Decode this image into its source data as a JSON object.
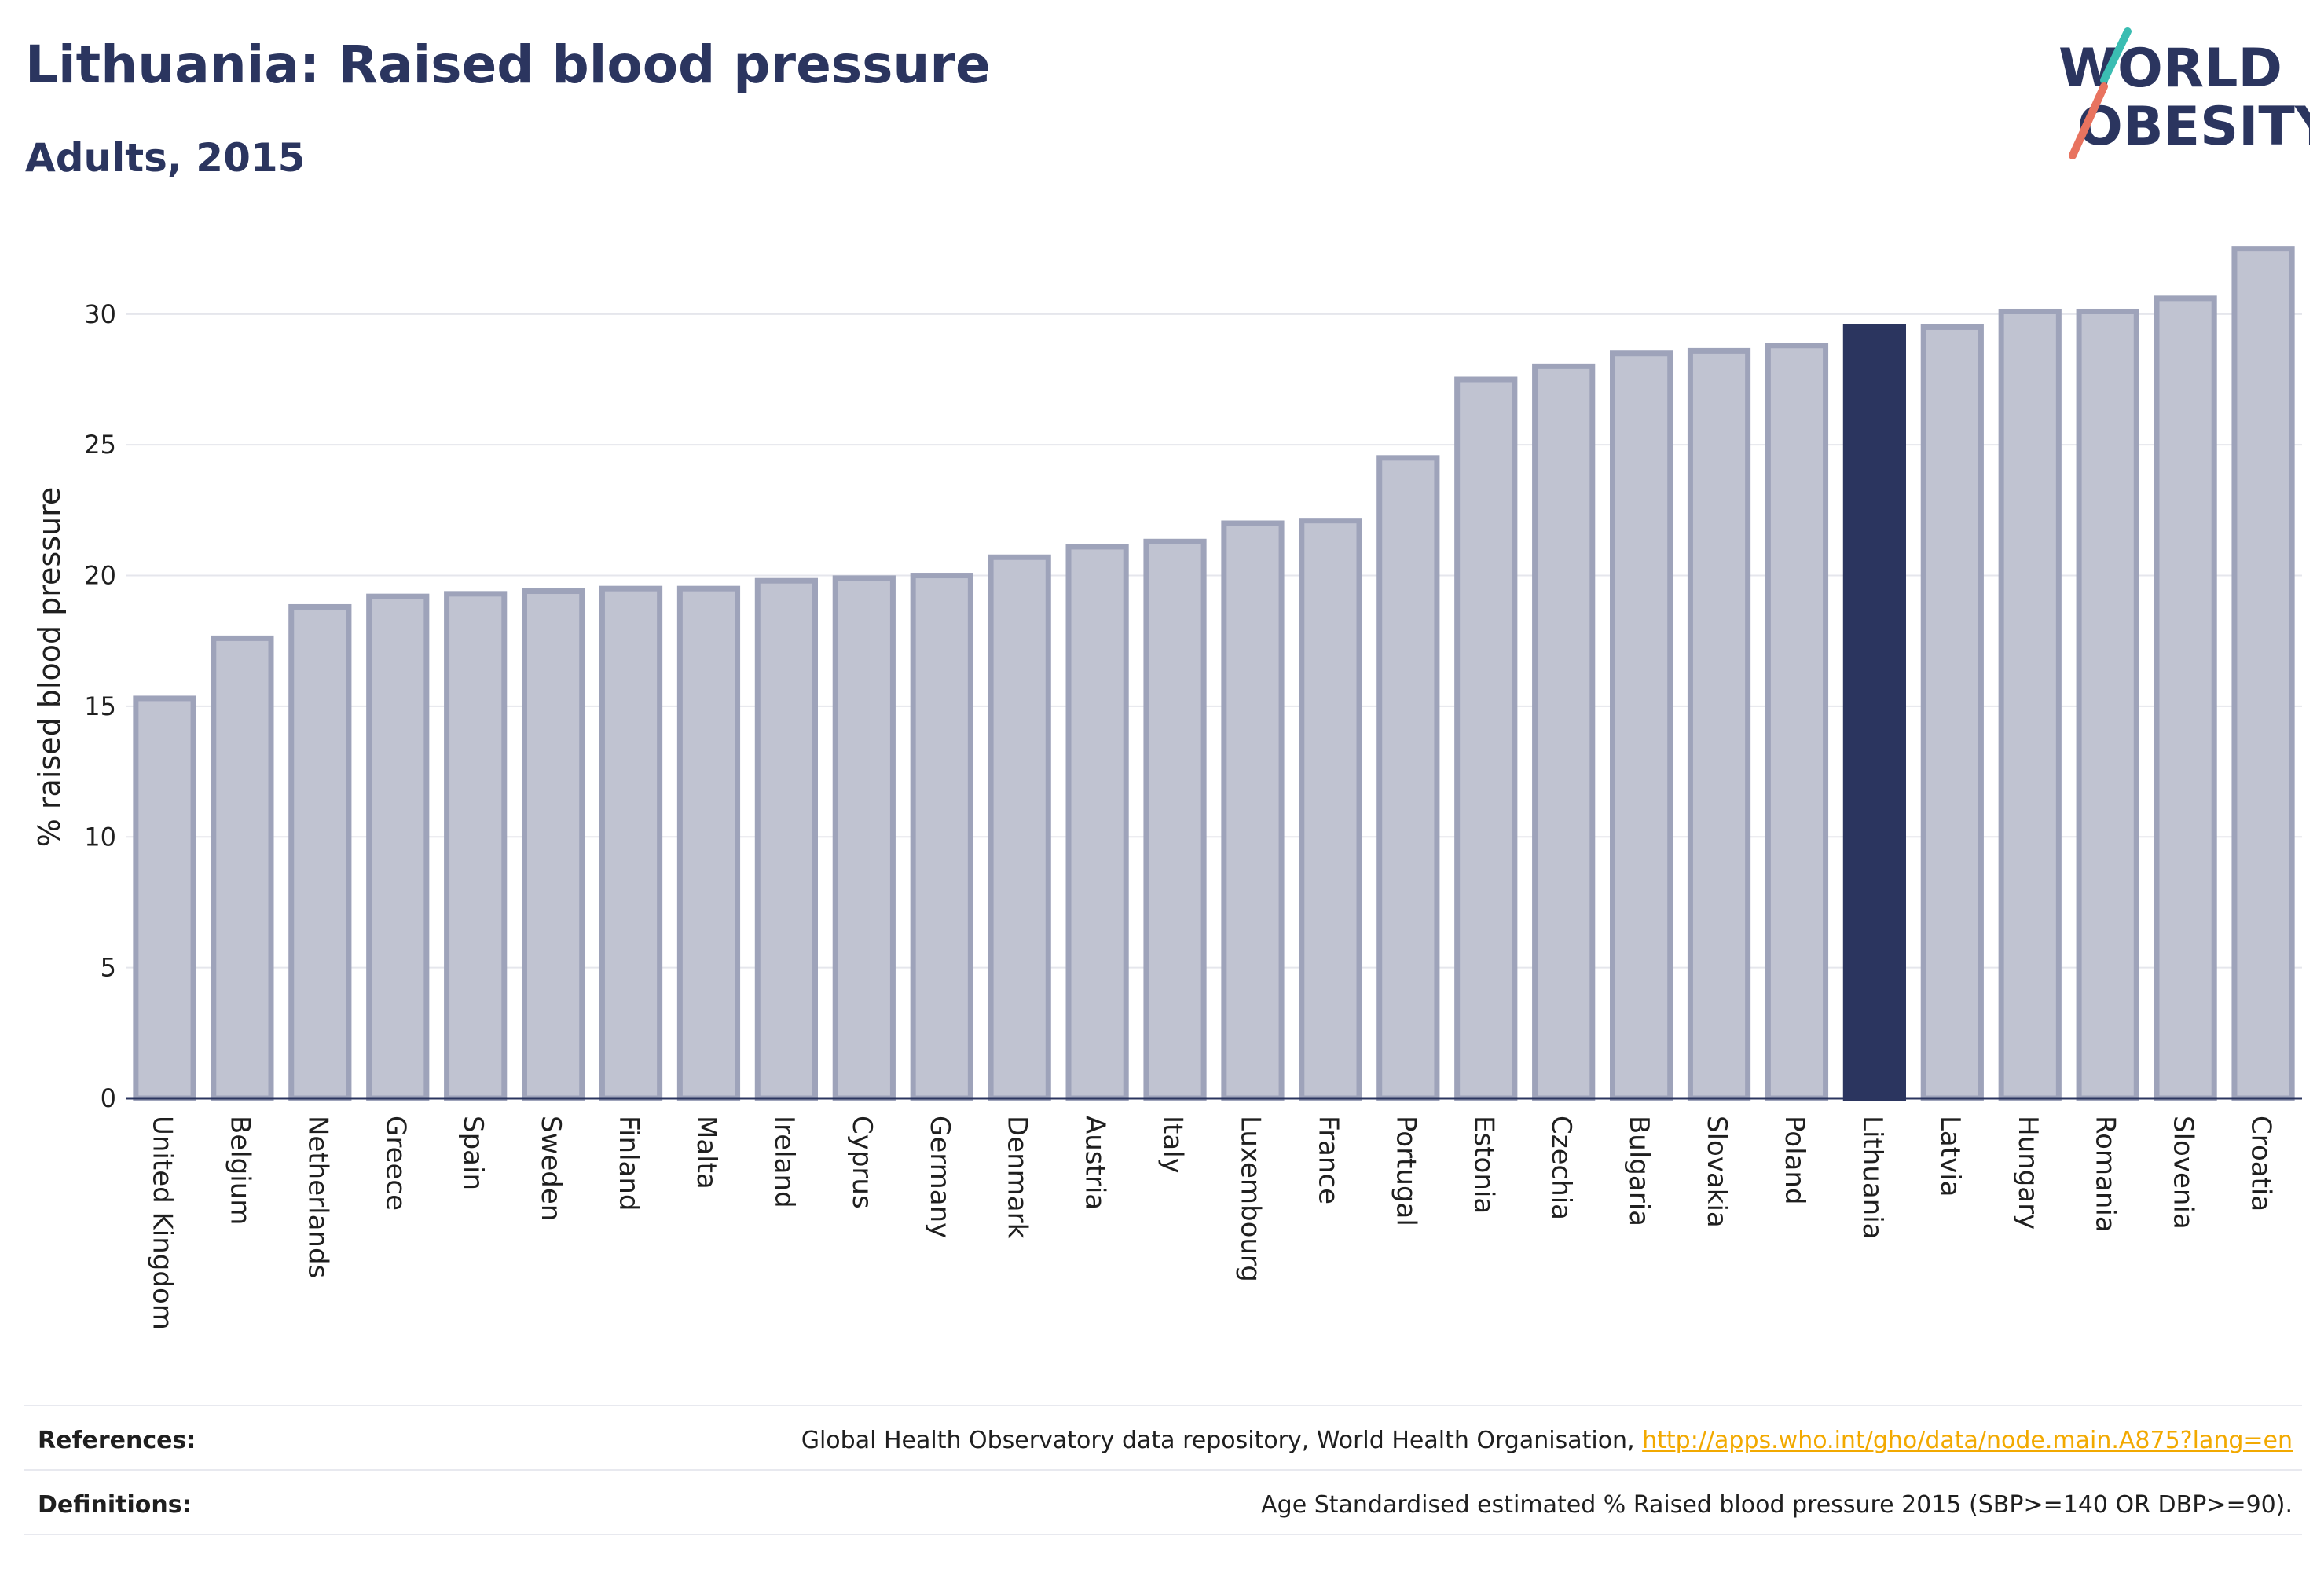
{
  "header": {
    "title": "Lithuania: Raised blood pressure",
    "subtitle": "Adults, 2015"
  },
  "logo": {
    "line1": "WORLD",
    "line2": "OBESITY"
  },
  "colors": {
    "bar": "#c0c3d1",
    "bar_border": "#9ea3ba",
    "highlight": "#2b355f",
    "grid": "#e5e6ec"
  },
  "chart_data": {
    "type": "bar",
    "ylabel": "% raised blood pressure",
    "ylim": [
      0,
      33
    ],
    "yticks": [
      0,
      5,
      10,
      15,
      20,
      25,
      30
    ],
    "highlight": "Lithuania",
    "categories": [
      "United Kingdom",
      "Belgium",
      "Netherlands",
      "Greece",
      "Spain",
      "Sweden",
      "Finland",
      "Malta",
      "Ireland",
      "Cyprus",
      "Germany",
      "Denmark",
      "Austria",
      "Italy",
      "Luxembourg",
      "France",
      "Portugal",
      "Estonia",
      "Czechia",
      "Bulgaria",
      "Slovakia",
      "Poland",
      "Lithuania",
      "Latvia",
      "Hungary",
      "Romania",
      "Slovenia",
      "Croatia"
    ],
    "values": [
      15.3,
      17.6,
      18.8,
      19.2,
      19.3,
      19.4,
      19.5,
      19.5,
      19.8,
      19.9,
      20.0,
      20.7,
      21.1,
      21.3,
      22.0,
      22.1,
      24.5,
      27.5,
      28.0,
      28.5,
      28.6,
      28.8,
      29.5,
      29.5,
      30.1,
      30.1,
      30.6,
      32.5
    ]
  },
  "footer": {
    "references_label": "References:",
    "references_text": "Global Health Observatory data repository, World Health Organisation, ",
    "references_link": "http://apps.who.int/gho/data/node.main.A875?lang=en",
    "definitions_label": "Definitions:",
    "definitions_text": "Age Standardised estimated % Raised blood pressure 2015 (SBP>=140 OR DBP>=90)."
  }
}
